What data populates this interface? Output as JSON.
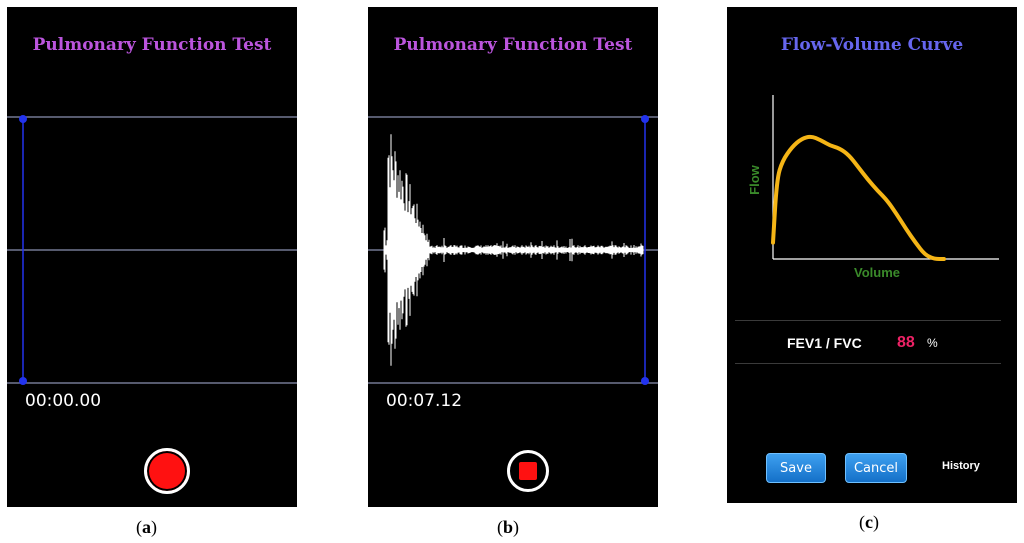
{
  "panel_a": {
    "title": "Pulmonary Function Test",
    "timer": "00:00.00",
    "caption_open": "(",
    "caption_letter": "a",
    "caption_close": ")"
  },
  "panel_b": {
    "title": "Pulmonary Function Test",
    "timer": "00:07.12",
    "caption_open": "(",
    "caption_letter": "b",
    "caption_close": ")"
  },
  "panel_c": {
    "title": "Flow-Volume Curve",
    "ratio_label": "FEV1 / FVC",
    "ratio_value": "88",
    "ratio_unit": "%",
    "save_label": "Save",
    "cancel_label": "Cancel",
    "history_label": "History",
    "caption_open": "(",
    "caption_letter": "c",
    "caption_close": ")"
  },
  "colors": {
    "title_purple": "#bb55dd",
    "title_blue": "#6666ee",
    "record_red": "#ff1111",
    "ratio_pink": "#ee2266",
    "curve_orange": "#f5b516",
    "axis_label_green": "#3a8a2a",
    "marker_blue": "#2233ee"
  },
  "icons": {
    "record_button": "record-circle-icon",
    "stop_button": "stop-square-icon"
  },
  "chart_data": {
    "type": "line",
    "title": "Flow-Volume Curve",
    "xlabel": "Volume",
    "ylabel": "Flow",
    "grid": false,
    "legend": "none",
    "x": [
      0.0,
      0.02,
      0.05,
      0.1,
      0.15,
      0.2,
      0.25,
      0.3,
      0.35,
      0.4,
      0.45,
      0.5,
      0.55,
      0.6,
      0.65,
      0.7,
      0.75,
      0.8,
      0.85,
      0.9
    ],
    "y": [
      0.12,
      0.58,
      0.72,
      0.82,
      0.88,
      0.9,
      0.87,
      0.83,
      0.81,
      0.76,
      0.67,
      0.58,
      0.5,
      0.43,
      0.33,
      0.22,
      0.12,
      0.03,
      0.0,
      0.0
    ],
    "xlim": [
      0,
      1
    ],
    "ylim": [
      0,
      1.2
    ]
  }
}
